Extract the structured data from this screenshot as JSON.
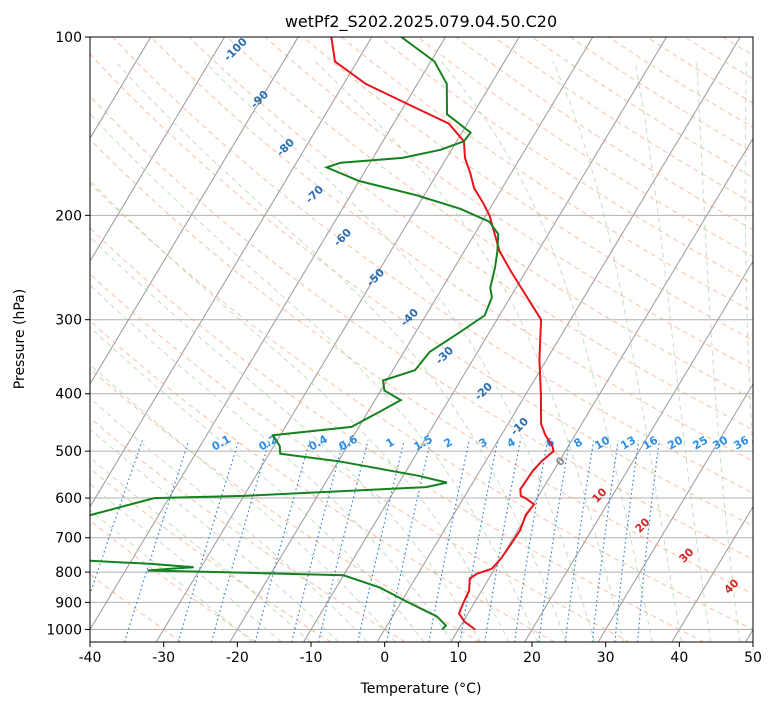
{
  "chart_data": {
    "type": "line",
    "title": "wetPf2_S202.2025.079.04.50.C20",
    "xlabel": "Temperature (°C)",
    "ylabel": "Pressure (hPa)",
    "xlim": [
      -40,
      50
    ],
    "ylim": [
      1050,
      100
    ],
    "y_scale": "log",
    "grid": true,
    "x_ticks": [
      -40,
      -30,
      -20,
      -10,
      0,
      10,
      20,
      30,
      40,
      50
    ],
    "y_ticks": [
      1000,
      900,
      800,
      700,
      600,
      500,
      400,
      300,
      200,
      100
    ],
    "skew": true,
    "colors": {
      "temperature": "#e8141c",
      "dewpoint": "#14821e",
      "dry_adiabat": "#f4a582",
      "moist_adiabat": "#a6d6a0",
      "mixing_ratio": "#2a7fd8",
      "isotherm": "#999999",
      "dry_label": "#2a6fb0",
      "moist_label": "#d62728",
      "moist_zero_label": "#888888"
    },
    "series": [
      {
        "role": "temperature",
        "points": [
          [
            12.3,
            1000
          ],
          [
            10.2,
            970
          ],
          [
            8.8,
            940
          ],
          [
            8.5,
            900
          ],
          [
            8.3,
            860
          ],
          [
            7.4,
            820
          ],
          [
            8.0,
            805
          ],
          [
            9.6,
            790
          ],
          [
            10.0,
            760
          ],
          [
            10.2,
            720
          ],
          [
            10.3,
            680
          ],
          [
            9.8,
            640
          ],
          [
            10.1,
            615
          ],
          [
            8.4,
            600
          ],
          [
            7.6,
            595
          ],
          [
            7.0,
            580
          ],
          [
            7.2,
            540
          ],
          [
            7.6,
            520
          ],
          [
            8.2,
            505
          ],
          [
            8.4,
            500
          ],
          [
            7.8,
            490
          ],
          [
            6.0,
            470
          ],
          [
            4.5,
            450
          ],
          [
            2.0,
            400
          ],
          [
            -1.0,
            350
          ],
          [
            -4.0,
            300
          ],
          [
            -8.5,
            270
          ],
          [
            -11.8,
            250
          ],
          [
            -15.2,
            230
          ],
          [
            -18.0,
            210
          ],
          [
            -19.5,
            200
          ],
          [
            -21.5,
            190
          ],
          [
            -23.8,
            180
          ],
          [
            -25.5,
            170
          ],
          [
            -27.5,
            160
          ],
          [
            -29.0,
            150
          ],
          [
            -32.5,
            140
          ],
          [
            -39.5,
            130
          ],
          [
            -47.0,
            120
          ],
          [
            -53.0,
            110
          ],
          [
            -55.5,
            100
          ]
        ]
      },
      {
        "role": "dewpoint",
        "points": [
          [
            7.8,
            1000
          ],
          [
            8.0,
            985
          ],
          [
            6.0,
            950
          ],
          [
            4.0,
            930
          ],
          [
            1.0,
            900
          ],
          [
            -4.0,
            850
          ],
          [
            -10.0,
            810
          ],
          [
            -27.0,
            800
          ],
          [
            -37.0,
            795
          ],
          [
            -34.0,
            790
          ],
          [
            -31.0,
            785
          ],
          [
            -37.0,
            775
          ],
          [
            -46.0,
            765
          ],
          [
            -54.0,
            755
          ],
          [
            -60.0,
            745
          ],
          [
            -65.0,
            740
          ],
          [
            -42.0,
            600
          ],
          [
            -30.0,
            595
          ],
          [
            -6.0,
            575
          ],
          [
            -3.5,
            565
          ],
          [
            -8.0,
            550
          ],
          [
            -20.0,
            520
          ],
          [
            -28.5,
            505
          ],
          [
            -29.2,
            490
          ],
          [
            -31.0,
            470
          ],
          [
            -21.0,
            455
          ],
          [
            -18.5,
            430
          ],
          [
            -16.5,
            410
          ],
          [
            -19.5,
            395
          ],
          [
            -20.5,
            380
          ],
          [
            -17.0,
            365
          ],
          [
            -16.5,
            340
          ],
          [
            -14.0,
            315
          ],
          [
            -12.0,
            295
          ],
          [
            -12.5,
            275
          ],
          [
            -13.5,
            265
          ],
          [
            -14.5,
            245
          ],
          [
            -15.5,
            230
          ],
          [
            -16.8,
            215
          ],
          [
            -19.0,
            205
          ],
          [
            -24.0,
            195
          ],
          [
            -31.0,
            185
          ],
          [
            -40.0,
            175
          ],
          [
            -45.5,
            166
          ],
          [
            -44.0,
            163
          ],
          [
            -36.0,
            160
          ],
          [
            -31.5,
            155
          ],
          [
            -29.0,
            150
          ],
          [
            -28.8,
            145
          ],
          [
            -33.5,
            135
          ],
          [
            -36.0,
            120
          ],
          [
            -39.5,
            110
          ],
          [
            -46.0,
            100
          ]
        ]
      }
    ],
    "dry_adiabat_labels": [
      "-100",
      "-90",
      "-80",
      "-70",
      "-60",
      "-50",
      "-40",
      "-30",
      "-20",
      "-10"
    ],
    "moist_adiabat_labels": [
      "0",
      "10",
      "20",
      "30",
      "40"
    ],
    "mixing_ratio_labels": [
      "0.1",
      "0.2",
      "0.4",
      "0.6",
      "1",
      "1.5",
      "2",
      "3",
      "4",
      "6",
      "8",
      "10",
      "13",
      "16",
      "20",
      "25",
      "30",
      "36"
    ]
  }
}
